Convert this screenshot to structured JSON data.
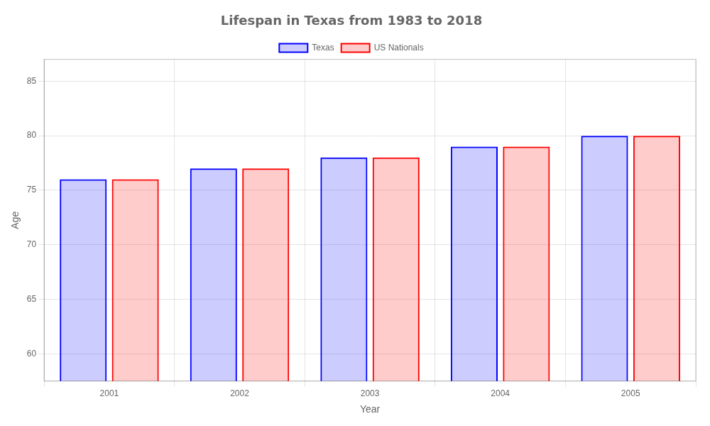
{
  "chart_data": {
    "type": "bar",
    "title": "Lifespan in Texas from 1983 to 2018",
    "xlabel": "Year",
    "ylabel": "Age",
    "categories": [
      "2001",
      "2002",
      "2003",
      "2004",
      "2005"
    ],
    "series": [
      {
        "name": "Texas",
        "color": "#0000ff",
        "values": [
          76,
          77,
          78,
          79,
          80
        ]
      },
      {
        "name": "US Nationals",
        "color": "#ff0000",
        "values": [
          76,
          77,
          78,
          79,
          80
        ]
      }
    ],
    "ylim": [
      57.5,
      87
    ],
    "yticks": [
      60,
      65,
      70,
      75,
      80,
      85
    ],
    "grid": true,
    "legend": "top"
  }
}
